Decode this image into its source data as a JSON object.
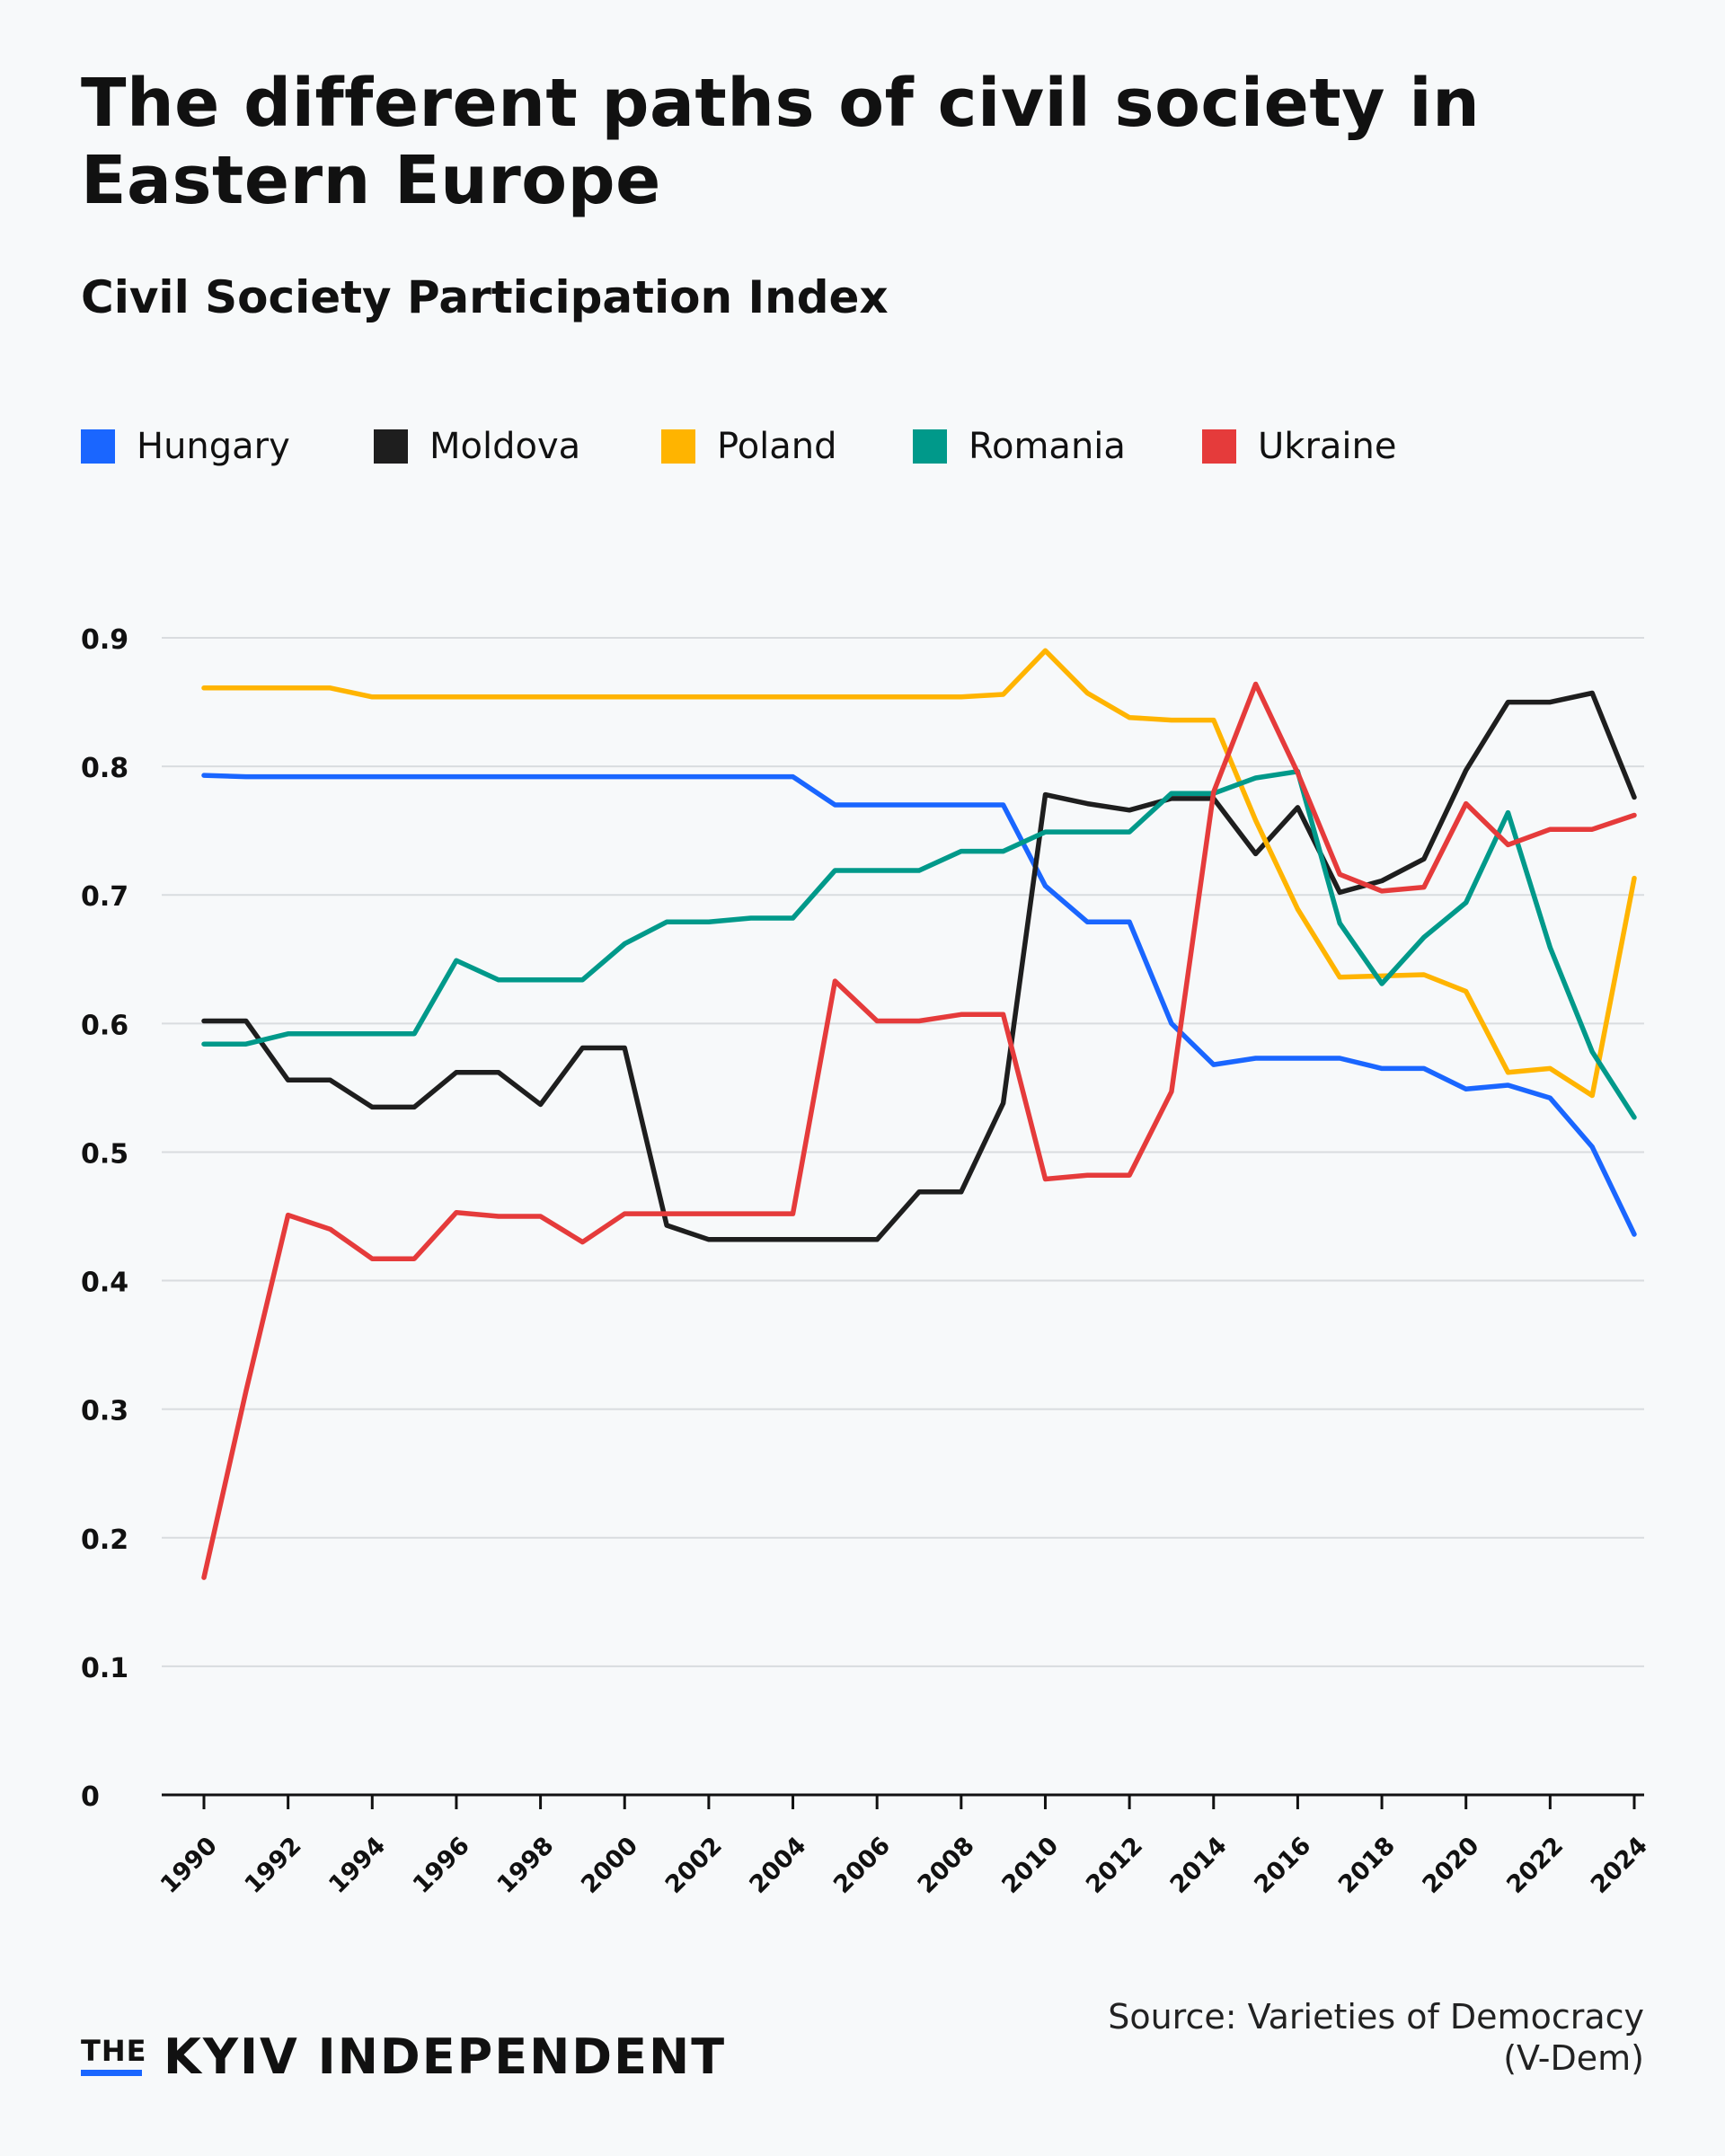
{
  "title": "The different paths of civil society in Eastern Europe",
  "subtitle": "Civil Society Participation Index",
  "legend": [
    {
      "name": "Hungary",
      "color": "#1a66ff"
    },
    {
      "name": "Moldova",
      "color": "#1e1e1e"
    },
    {
      "name": "Poland",
      "color": "#ffb400"
    },
    {
      "name": "Romania",
      "color": "#00998a"
    },
    {
      "name": "Ukraine",
      "color": "#e53b3b"
    }
  ],
  "source": "Source: Varieties of Democracy (V-Dem)",
  "brand": {
    "the": "THE",
    "name": "KYIV INDEPENDENT",
    "accent": "#1a66ff"
  },
  "chart_data": {
    "type": "line",
    "title": "Civil Society Participation Index",
    "xlabel": "",
    "ylabel": "",
    "xlim": [
      1990,
      2024
    ],
    "ylim": [
      0,
      0.9
    ],
    "yticks": [
      0,
      0.1,
      0.2,
      0.3,
      0.4,
      0.5,
      0.6,
      0.7,
      0.8,
      0.9
    ],
    "ytick_labels": [
      "0",
      "0.1",
      "0.2",
      "0.3",
      "0.4",
      "0.5",
      "0.6",
      "0.7",
      "0.8",
      "0.9"
    ],
    "xticks": [
      1990,
      1992,
      1994,
      1996,
      1998,
      2000,
      2002,
      2004,
      2006,
      2008,
      2010,
      2012,
      2014,
      2016,
      2018,
      2020,
      2022,
      2024
    ],
    "grid": true,
    "legend_position": "top",
    "series": [
      {
        "name": "Hungary",
        "color": "#1a66ff",
        "x": [
          1990,
          1991,
          1992,
          1993,
          1994,
          1995,
          1996,
          1997,
          1998,
          1999,
          2000,
          2001,
          2002,
          2003,
          2004,
          2005,
          2006,
          2007,
          2008,
          2009,
          2010,
          2011,
          2012,
          2013,
          2014,
          2015,
          2016,
          2017,
          2018,
          2019,
          2020,
          2021,
          2022,
          2023,
          2024
        ],
        "y": [
          0.793,
          0.792,
          0.792,
          0.792,
          0.792,
          0.792,
          0.792,
          0.792,
          0.792,
          0.792,
          0.792,
          0.792,
          0.792,
          0.792,
          0.792,
          0.77,
          0.77,
          0.77,
          0.77,
          0.77,
          0.707,
          0.679,
          0.679,
          0.6,
          0.568,
          0.573,
          0.573,
          0.573,
          0.565,
          0.565,
          0.549,
          0.552,
          0.542,
          0.504,
          0.436
        ]
      },
      {
        "name": "Moldova",
        "color": "#1e1e1e",
        "x": [
          1990,
          1991,
          1992,
          1993,
          1994,
          1995,
          1996,
          1997,
          1998,
          1999,
          2000,
          2001,
          2002,
          2003,
          2004,
          2005,
          2006,
          2007,
          2008,
          2009,
          2010,
          2011,
          2012,
          2013,
          2014,
          2015,
          2016,
          2017,
          2018,
          2019,
          2020,
          2021,
          2022,
          2023,
          2024
        ],
        "y": [
          0.602,
          0.602,
          0.556,
          0.556,
          0.535,
          0.535,
          0.562,
          0.562,
          0.537,
          0.581,
          0.581,
          0.443,
          0.432,
          0.432,
          0.432,
          0.432,
          0.432,
          0.469,
          0.469,
          0.538,
          0.778,
          0.771,
          0.766,
          0.775,
          0.775,
          0.732,
          0.768,
          0.702,
          0.711,
          0.728,
          0.797,
          0.85,
          0.85,
          0.857,
          0.776
        ]
      },
      {
        "name": "Poland",
        "color": "#ffb400",
        "x": [
          1990,
          1991,
          1992,
          1993,
          1994,
          1995,
          1996,
          1997,
          1998,
          1999,
          2000,
          2001,
          2002,
          2003,
          2004,
          2005,
          2006,
          2007,
          2008,
          2009,
          2010,
          2011,
          2012,
          2013,
          2014,
          2015,
          2016,
          2017,
          2018,
          2019,
          2020,
          2021,
          2022,
          2023,
          2024
        ],
        "y": [
          0.861,
          0.861,
          0.861,
          0.861,
          0.854,
          0.854,
          0.854,
          0.854,
          0.854,
          0.854,
          0.854,
          0.854,
          0.854,
          0.854,
          0.854,
          0.854,
          0.854,
          0.854,
          0.854,
          0.856,
          0.89,
          0.857,
          0.838,
          0.836,
          0.836,
          0.758,
          0.689,
          0.636,
          0.637,
          0.638,
          0.625,
          0.562,
          0.565,
          0.544,
          0.713
        ]
      },
      {
        "name": "Romania",
        "color": "#00998a",
        "x": [
          1990,
          1991,
          1992,
          1993,
          1994,
          1995,
          1996,
          1997,
          1998,
          1999,
          2000,
          2001,
          2002,
          2003,
          2004,
          2005,
          2006,
          2007,
          2008,
          2009,
          2010,
          2011,
          2012,
          2013,
          2014,
          2015,
          2016,
          2017,
          2018,
          2019,
          2020,
          2021,
          2022,
          2023,
          2024
        ],
        "y": [
          0.584,
          0.584,
          0.592,
          0.592,
          0.592,
          0.592,
          0.649,
          0.634,
          0.634,
          0.634,
          0.662,
          0.679,
          0.679,
          0.682,
          0.682,
          0.719,
          0.719,
          0.719,
          0.734,
          0.734,
          0.749,
          0.749,
          0.749,
          0.779,
          0.779,
          0.791,
          0.796,
          0.678,
          0.631,
          0.667,
          0.694,
          0.764,
          0.659,
          0.578,
          0.527
        ]
      },
      {
        "name": "Ukraine",
        "color": "#e53b3b",
        "x": [
          1990,
          1991,
          1992,
          1993,
          1994,
          1995,
          1996,
          1997,
          1998,
          1999,
          2000,
          2001,
          2002,
          2003,
          2004,
          2005,
          2006,
          2007,
          2008,
          2009,
          2010,
          2011,
          2012,
          2013,
          2014,
          2015,
          2016,
          2017,
          2018,
          2019,
          2020,
          2021,
          2022,
          2023,
          2024
        ],
        "y": [
          0.169,
          0.314,
          0.451,
          0.44,
          0.417,
          0.417,
          0.453,
          0.45,
          0.45,
          0.43,
          0.452,
          0.452,
          0.452,
          0.452,
          0.452,
          0.633,
          0.602,
          0.602,
          0.607,
          0.607,
          0.479,
          0.482,
          0.482,
          0.547,
          0.78,
          0.864,
          0.795,
          0.716,
          0.703,
          0.706,
          0.771,
          0.739,
          0.751,
          0.751,
          0.762
        ]
      }
    ]
  }
}
